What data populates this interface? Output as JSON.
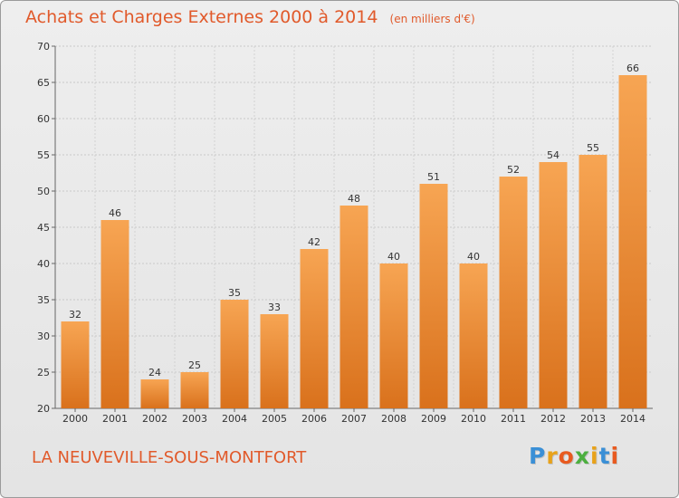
{
  "header": {
    "title": "Achats et Charges Externes 2000 à 2014",
    "unit": "(en milliers d'€)"
  },
  "footer": {
    "commune": "LA NEUVEVILLE-SOUS-MONTFORT",
    "logo": [
      "P",
      "r",
      "o",
      "x",
      "i",
      "t",
      "i"
    ]
  },
  "colors": {
    "title": "#e15a2b",
    "bar_top": "#f7a553",
    "bar_bottom": "#d9711c",
    "logo": [
      "#3a8fd6",
      "#e8a21a",
      "#e85a1f",
      "#4caf3f",
      "#e8a21a",
      "#3a8fd6",
      "#e85a1f"
    ]
  },
  "chart_data": {
    "type": "bar",
    "title": "Achats et Charges Externes 2000 à 2014",
    "subtitle": "(en milliers d'€)",
    "categories": [
      "2000",
      "2001",
      "2002",
      "2003",
      "2004",
      "2005",
      "2006",
      "2007",
      "2008",
      "2009",
      "2010",
      "2011",
      "2012",
      "2013",
      "2014"
    ],
    "values": [
      32,
      46,
      24,
      25,
      35,
      33,
      42,
      48,
      40,
      51,
      40,
      52,
      54,
      55,
      66
    ],
    "ylim": [
      20,
      70
    ],
    "yticks": [
      20,
      25,
      30,
      35,
      40,
      45,
      50,
      55,
      60,
      65,
      70
    ],
    "grid": true,
    "data_labels": true,
    "legend": "none"
  }
}
